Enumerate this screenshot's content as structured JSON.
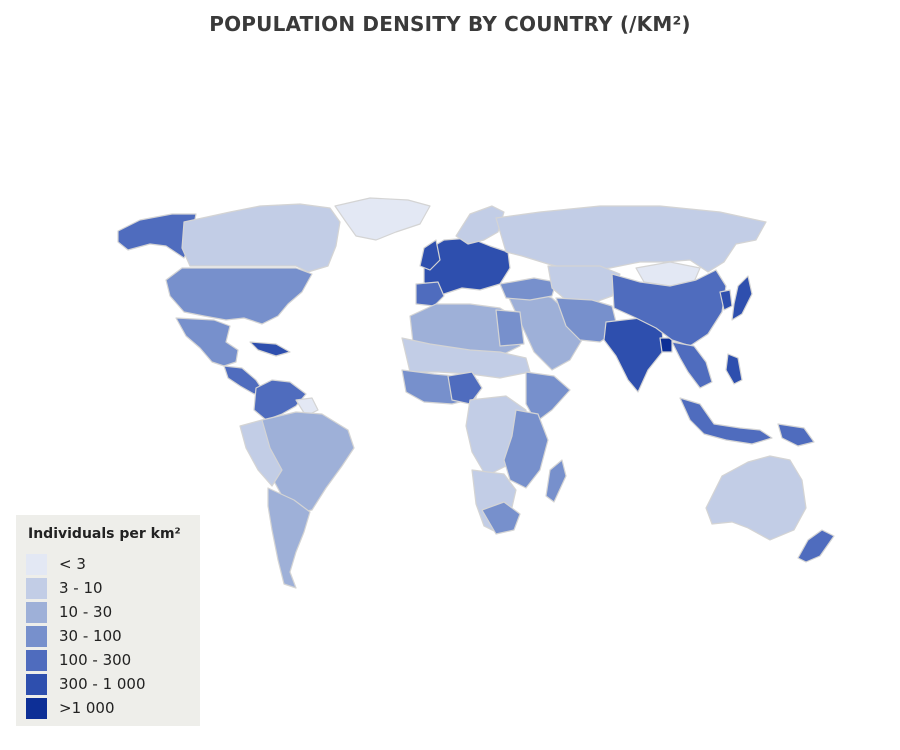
{
  "title": "POPULATION DENSITY BY COUNTRY (/KM²)",
  "legend": {
    "title": "Individuals per km²",
    "items": [
      {
        "label": "< 3",
        "color": "#e3e8f4"
      },
      {
        "label": "3 - 10",
        "color": "#c2cde6"
      },
      {
        "label": "10 - 30",
        "color": "#9eb0d8"
      },
      {
        "label": "30 - 100",
        "color": "#7790cc"
      },
      {
        "label": "100 - 300",
        "color": "#4f6cbe"
      },
      {
        "label": "300 - 1 000",
        "color": "#2e4fae"
      },
      {
        "label": ">1 000",
        "color": "#0d2f96"
      }
    ]
  }
}
